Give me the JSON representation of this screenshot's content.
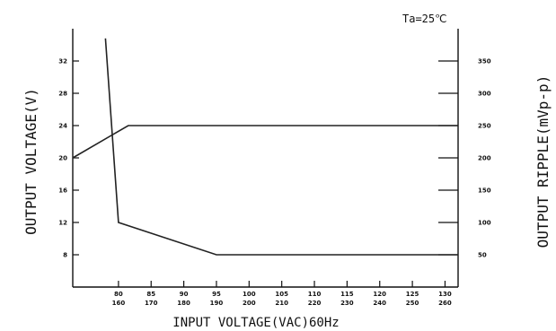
{
  "chart_data": {
    "type": "line",
    "annotation": "Ta=25℃",
    "xlabel": "INPUT VOLTAGE(VAC)60Hz",
    "ylabel_left": "OUTPUT VOLTAGE(V)",
    "ylabel_right": "OUTPUT RIPPLE(mVp-p)",
    "x_ticks_top": [
      "80",
      "85",
      "90",
      "95",
      "100",
      "105",
      "110",
      "115",
      "120",
      "125",
      "130"
    ],
    "x_ticks_bottom": [
      "160",
      "170",
      "180",
      "190",
      "200",
      "210",
      "220",
      "230",
      "240",
      "250",
      "260"
    ],
    "x_ticks": [
      80,
      85,
      90,
      95,
      100,
      105,
      110,
      115,
      120,
      125,
      130
    ],
    "xlim": [
      73,
      132
    ],
    "y_left_ticks": [
      8,
      12,
      16,
      20,
      24,
      28,
      32
    ],
    "y_left_lim": [
      4,
      36
    ],
    "y_right_ticks": [
      50,
      100,
      150,
      200,
      250,
      300,
      350
    ],
    "y_right_lim": [
      0,
      400
    ],
    "grid": false,
    "series": [
      {
        "axis": "left",
        "x": [
          73,
          81.5,
          132
        ],
        "y": [
          20,
          24,
          24
        ]
      },
      {
        "axis": "right",
        "x": [
          78,
          80,
          95,
          132
        ],
        "y": [
          385,
          100,
          50,
          50
        ]
      }
    ]
  }
}
